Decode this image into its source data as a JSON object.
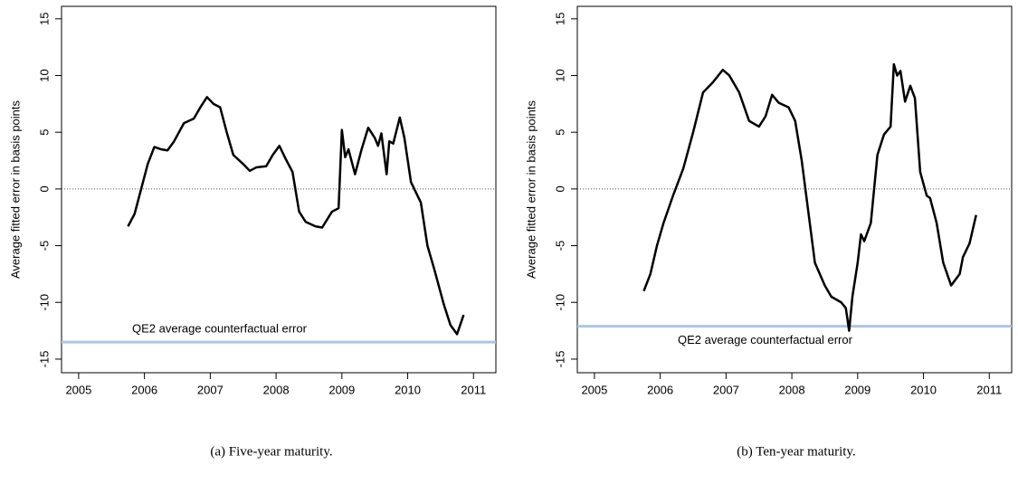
{
  "chart_data": [
    {
      "type": "line",
      "ylabel": "Average fitted error in basis points",
      "caption": "(a) Five-year maturity.",
      "x": [
        2005.75,
        2005.85,
        2005.95,
        2006.05,
        2006.15,
        2006.25,
        2006.35,
        2006.45,
        2006.6,
        2006.75,
        2006.85,
        2006.95,
        2007.05,
        2007.15,
        2007.25,
        2007.35,
        2007.5,
        2007.6,
        2007.7,
        2007.85,
        2007.95,
        2008.05,
        2008.15,
        2008.25,
        2008.35,
        2008.45,
        2008.6,
        2008.7,
        2008.85,
        2008.95,
        2009.0,
        2009.05,
        2009.1,
        2009.2,
        2009.3,
        2009.4,
        2009.5,
        2009.55,
        2009.6,
        2009.68,
        2009.72,
        2009.78,
        2009.88,
        2009.95,
        2010.05,
        2010.2,
        2010.3,
        2010.4,
        2010.55,
        2010.65,
        2010.75,
        2010.85
      ],
      "series": [
        {
          "color": "#000000",
          "values": [
            -3.3,
            -2.2,
            0.0,
            2.2,
            3.7,
            3.5,
            3.4,
            4.2,
            5.8,
            6.2,
            7.2,
            8.1,
            7.5,
            7.2,
            5.0,
            3.0,
            2.2,
            1.6,
            1.9,
            2.0,
            3.0,
            3.8,
            2.6,
            1.5,
            -2.0,
            -2.9,
            -3.3,
            -3.4,
            -2.0,
            -1.7,
            5.2,
            2.8,
            3.5,
            1.3,
            3.5,
            5.4,
            4.5,
            3.8,
            4.9,
            1.3,
            4.2,
            4.0,
            6.3,
            4.5,
            0.6,
            -1.2,
            -5.0,
            -7.0,
            -10.2,
            -12.0,
            -12.8,
            -11.1
          ]
        }
      ],
      "reference_line": {
        "value": -13.5,
        "label": "QE2 average counterfactual error",
        "color": "#b0c4de",
        "label_position": "above"
      },
      "zero_line": 0,
      "xlim": [
        2004.74,
        2011.34
      ],
      "ylim": [
        -16.2,
        16.1
      ],
      "xticks": [
        2005,
        2006,
        2007,
        2008,
        2009,
        2010,
        2011
      ],
      "yticks": [
        -15,
        -10,
        -5,
        0,
        5,
        10,
        15
      ]
    },
    {
      "type": "line",
      "ylabel": "Average fitted error in basis points",
      "caption": "(b) Ten-year maturity.",
      "x": [
        2005.75,
        2005.85,
        2005.95,
        2006.05,
        2006.2,
        2006.35,
        2006.5,
        2006.65,
        2006.8,
        2006.95,
        2007.05,
        2007.2,
        2007.35,
        2007.5,
        2007.6,
        2007.7,
        2007.8,
        2007.95,
        2008.05,
        2008.15,
        2008.25,
        2008.35,
        2008.5,
        2008.6,
        2008.75,
        2008.82,
        2008.87,
        2008.92,
        2009.0,
        2009.05,
        2009.1,
        2009.2,
        2009.3,
        2009.4,
        2009.5,
        2009.55,
        2009.6,
        2009.65,
        2009.72,
        2009.8,
        2009.87,
        2009.95,
        2010.05,
        2010.1,
        2010.2,
        2010.3,
        2010.42,
        2010.55,
        2010.6,
        2010.7,
        2010.8
      ],
      "series": [
        {
          "color": "#000000",
          "values": [
            -9.0,
            -7.5,
            -5.0,
            -3.0,
            -0.5,
            1.8,
            5.0,
            8.5,
            9.4,
            10.5,
            10.0,
            8.5,
            6.0,
            5.5,
            6.4,
            8.3,
            7.6,
            7.2,
            6.0,
            2.5,
            -2.0,
            -6.5,
            -8.5,
            -9.5,
            -10.0,
            -10.5,
            -12.5,
            -9.5,
            -6.5,
            -4.0,
            -4.6,
            -3.0,
            3.0,
            4.8,
            5.5,
            11.0,
            10.0,
            10.4,
            7.7,
            9.1,
            8.0,
            1.5,
            -0.6,
            -0.8,
            -3.0,
            -6.5,
            -8.5,
            -7.5,
            -6.0,
            -4.8,
            -2.3
          ]
        }
      ],
      "reference_line": {
        "value": -12.1,
        "label": "QE2 average counterfactual error",
        "color": "#b0c4de",
        "label_position": "below"
      },
      "zero_line": 0,
      "xlim": [
        2004.74,
        2011.34
      ],
      "ylim": [
        -16.2,
        16.1
      ],
      "xticks": [
        2005,
        2006,
        2007,
        2008,
        2009,
        2010,
        2011
      ],
      "yticks": [
        -15,
        -10,
        -5,
        0,
        5,
        10,
        15
      ]
    }
  ]
}
